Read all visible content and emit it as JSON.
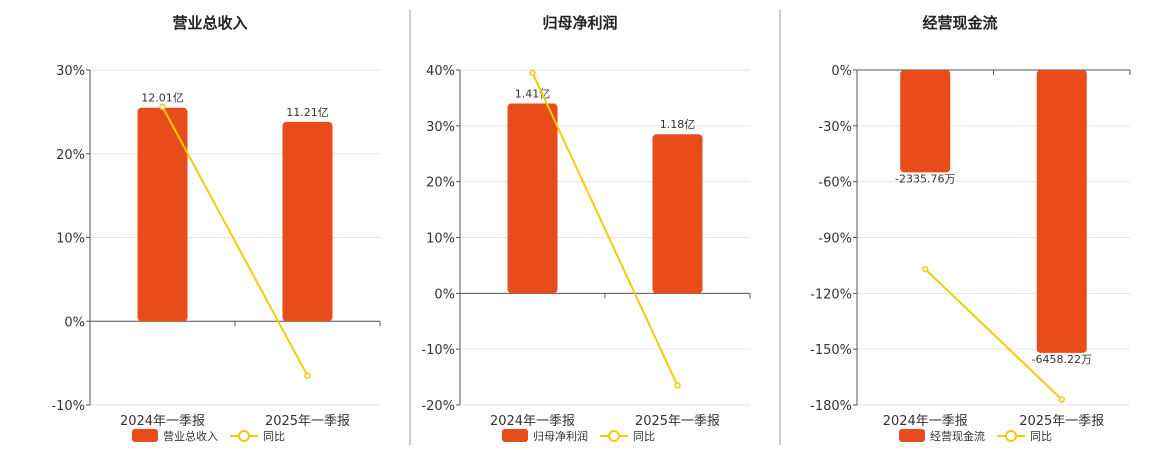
{
  "colors": {
    "bar": "#E84C1A",
    "line": "#F2CC0C",
    "point_fill": "#ffffff"
  },
  "legend": {
    "line_label": "同比"
  },
  "chart_data": [
    {
      "type": "bar",
      "title": "营业总收入",
      "categories": [
        "2024年一季报",
        "2025年一季报"
      ],
      "bar_series": {
        "name": "营业总收入",
        "values": [
          25.5,
          23.8
        ],
        "labels": [
          "12.01亿",
          "11.21亿"
        ]
      },
      "line_series": {
        "name": "同比",
        "values": [
          25.6,
          -6.5
        ]
      },
      "y_ticks": [
        "30%",
        "20%",
        "10%",
        "0%",
        "-10%"
      ],
      "ylim": [
        -10,
        30
      ],
      "grid": true,
      "legend_position": "bottom"
    },
    {
      "type": "bar",
      "title": "归母净利润",
      "categories": [
        "2024年一季报",
        "2025年一季报"
      ],
      "bar_series": {
        "name": "归母净利润",
        "values": [
          34.0,
          28.5
        ],
        "labels": [
          "1.41亿",
          "1.18亿"
        ]
      },
      "line_series": {
        "name": "同比",
        "values": [
          39.5,
          -16.5
        ]
      },
      "y_ticks": [
        "40%",
        "30%",
        "20%",
        "10%",
        "0%",
        "-10%",
        "-20%"
      ],
      "ylim": [
        -20,
        40
      ],
      "grid": true,
      "legend_position": "bottom"
    },
    {
      "type": "bar",
      "title": "经营现金流",
      "categories": [
        "2024年一季报",
        "2025年一季报"
      ],
      "bar_series": {
        "name": "经营现金流",
        "values": [
          -55,
          -152
        ],
        "labels": [
          "-2335.76万",
          "-6458.22万"
        ]
      },
      "line_series": {
        "name": "同比",
        "values": [
          -107,
          -177
        ]
      },
      "y_ticks": [
        "0%",
        "-30%",
        "-60%",
        "-90%",
        "-120%",
        "-150%",
        "-180%"
      ],
      "ylim": [
        -180,
        0
      ],
      "grid": true,
      "legend_position": "bottom"
    }
  ]
}
